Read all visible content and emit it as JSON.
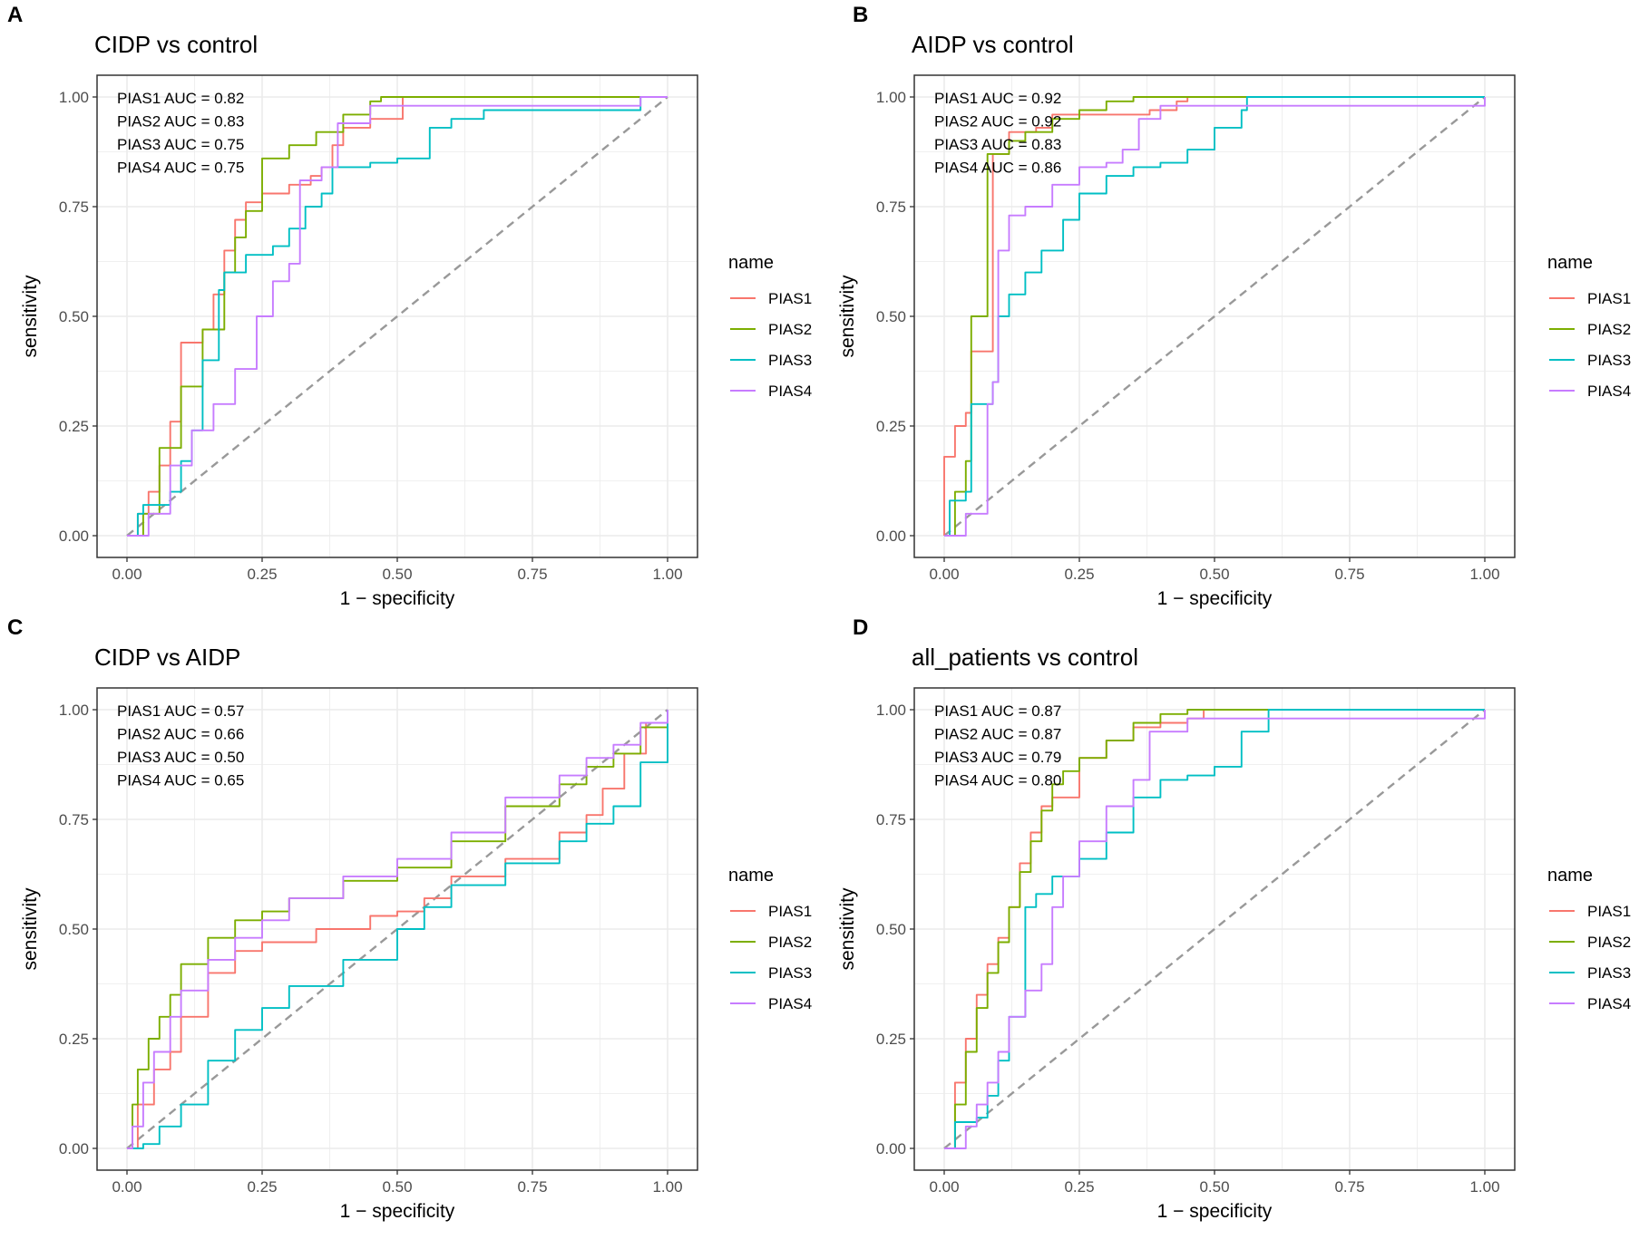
{
  "figure": {
    "series_colors": {
      "PIAS1": "#F8766D",
      "PIAS2": "#7CAE00",
      "PIAS3": "#00BFC4",
      "PIAS4": "#C77CFF"
    },
    "reference_line_color": "#999999",
    "legend_title": "name"
  },
  "chart_data": [
    {
      "panel": "A",
      "type": "line",
      "title": "CIDP vs control",
      "xlabel": "1 − specificity",
      "ylabel": "sensitivity",
      "xlim": [
        0,
        1
      ],
      "ylim": [
        0,
        1
      ],
      "xticks": [
        "0.00",
        "0.25",
        "0.50",
        "0.75",
        "1.00"
      ],
      "yticks": [
        "0.00",
        "0.25",
        "0.50",
        "0.75",
        "1.00"
      ],
      "annotations": [
        "PIAS1 AUC = 0.82",
        "PIAS2 AUC = 0.83",
        "PIAS3 AUC = 0.75",
        "PIAS4 AUC = 0.75"
      ],
      "legend": {
        "title": "name",
        "entries": [
          "PIAS1",
          "PIAS2",
          "PIAS3",
          "PIAS4"
        ]
      },
      "reference_line": [
        [
          0,
          0
        ],
        [
          1,
          1
        ]
      ],
      "series": [
        {
          "name": "PIAS1",
          "x": [
            0,
            0.02,
            0.04,
            0.06,
            0.08,
            0.1,
            0.1,
            0.14,
            0.16,
            0.18,
            0.2,
            0.22,
            0.25,
            0.3,
            0.34,
            0.36,
            0.38,
            0.4,
            0.45,
            0.51,
            0.51,
            0.65,
            1.0
          ],
          "y": [
            0,
            0.05,
            0.1,
            0.16,
            0.26,
            0.32,
            0.44,
            0.47,
            0.55,
            0.65,
            0.72,
            0.76,
            0.78,
            0.8,
            0.82,
            0.84,
            0.89,
            0.93,
            0.95,
            0.95,
            1.0,
            1.0,
            1.0
          ]
        },
        {
          "name": "PIAS2",
          "x": [
            0,
            0.03,
            0.03,
            0.06,
            0.1,
            0.14,
            0.18,
            0.2,
            0.22,
            0.25,
            0.25,
            0.3,
            0.35,
            0.4,
            0.45,
            0.47,
            0.65,
            1.0
          ],
          "y": [
            0,
            0.01,
            0.05,
            0.2,
            0.34,
            0.47,
            0.6,
            0.68,
            0.74,
            0.8,
            0.86,
            0.89,
            0.92,
            0.96,
            0.99,
            1.0,
            1.0,
            1.0
          ]
        },
        {
          "name": "PIAS3",
          "x": [
            0,
            0.02,
            0.03,
            0.06,
            0.08,
            0.1,
            0.12,
            0.14,
            0.17,
            0.18,
            0.22,
            0.27,
            0.3,
            0.33,
            0.36,
            0.38,
            0.4,
            0.45,
            0.5,
            0.56,
            0.6,
            0.66,
            0.95,
            1.0
          ],
          "y": [
            0,
            0.05,
            0.07,
            0.07,
            0.1,
            0.17,
            0.24,
            0.4,
            0.56,
            0.6,
            0.64,
            0.66,
            0.7,
            0.75,
            0.78,
            0.84,
            0.84,
            0.85,
            0.86,
            0.93,
            0.95,
            0.97,
            1.0,
            1.0
          ]
        },
        {
          "name": "PIAS4",
          "x": [
            0,
            0.04,
            0.08,
            0.12,
            0.16,
            0.2,
            0.24,
            0.27,
            0.3,
            0.32,
            0.32,
            0.36,
            0.39,
            0.39,
            0.45,
            0.6,
            0.95,
            1.0
          ],
          "y": [
            0,
            0.05,
            0.16,
            0.24,
            0.3,
            0.38,
            0.5,
            0.58,
            0.62,
            0.66,
            0.81,
            0.84,
            0.86,
            0.94,
            0.98,
            0.98,
            1.0,
            1.0
          ]
        }
      ]
    },
    {
      "panel": "B",
      "type": "line",
      "title": "AIDP vs control",
      "xlabel": "1 − specificity",
      "ylabel": "sensitivity",
      "xlim": [
        0,
        1
      ],
      "ylim": [
        0,
        1
      ],
      "xticks": [
        "0.00",
        "0.25",
        "0.50",
        "0.75",
        "1.00"
      ],
      "yticks": [
        "0.00",
        "0.25",
        "0.50",
        "0.75",
        "1.00"
      ],
      "annotations": [
        "PIAS1 AUC = 0.92",
        "PIAS2 AUC = 0.92",
        "PIAS3 AUC = 0.83",
        "PIAS4 AUC = 0.86"
      ],
      "legend": {
        "title": "name",
        "entries": [
          "PIAS1",
          "PIAS2",
          "PIAS3",
          "PIAS4"
        ]
      },
      "reference_line": [
        [
          0,
          0
        ],
        [
          1,
          1
        ]
      ],
      "series": [
        {
          "name": "PIAS1",
          "x": [
            0,
            0,
            0.02,
            0.04,
            0.05,
            0.09,
            0.09,
            0.12,
            0.17,
            0.2,
            0.2,
            0.3,
            0.33,
            0.38,
            0.43,
            0.45,
            1.0
          ],
          "y": [
            0,
            0.18,
            0.25,
            0.28,
            0.42,
            0.43,
            0.87,
            0.92,
            0.93,
            0.95,
            0.96,
            0.96,
            0.96,
            0.97,
            0.99,
            1.0,
            1.0
          ]
        },
        {
          "name": "PIAS2",
          "x": [
            0,
            0.02,
            0.04,
            0.05,
            0.08,
            0.08,
            0.09,
            0.12,
            0.15,
            0.2,
            0.25,
            0.3,
            0.35,
            0.55,
            1.0
          ],
          "y": [
            0,
            0.1,
            0.17,
            0.5,
            0.58,
            0.87,
            0.87,
            0.9,
            0.92,
            0.95,
            0.97,
            0.99,
            1.0,
            1.0,
            1.0
          ]
        },
        {
          "name": "PIAS3",
          "x": [
            0,
            0.01,
            0.04,
            0.05,
            0.09,
            0.1,
            0.12,
            0.15,
            0.18,
            0.22,
            0.25,
            0.3,
            0.35,
            0.4,
            0.45,
            0.5,
            0.55,
            0.56,
            1.0
          ],
          "y": [
            0,
            0.08,
            0.1,
            0.3,
            0.35,
            0.5,
            0.55,
            0.6,
            0.65,
            0.72,
            0.78,
            0.82,
            0.84,
            0.85,
            0.88,
            0.93,
            0.97,
            1.0,
            1.0
          ]
        },
        {
          "name": "PIAS4",
          "x": [
            0,
            0.04,
            0.08,
            0.09,
            0.1,
            0.12,
            0.15,
            0.2,
            0.25,
            0.3,
            0.33,
            0.36,
            0.4,
            0.95,
            1.0
          ],
          "y": [
            0,
            0.05,
            0.3,
            0.35,
            0.65,
            0.73,
            0.75,
            0.8,
            0.84,
            0.85,
            0.88,
            0.95,
            0.98,
            0.98,
            1.0
          ]
        }
      ]
    },
    {
      "panel": "C",
      "type": "line",
      "title": "CIDP vs AIDP",
      "xlabel": "1 − specificity",
      "ylabel": "sensitivity",
      "xlim": [
        0,
        1
      ],
      "ylim": [
        0,
        1
      ],
      "xticks": [
        "0.00",
        "0.25",
        "0.50",
        "0.75",
        "1.00"
      ],
      "yticks": [
        "0.00",
        "0.25",
        "0.50",
        "0.75",
        "1.00"
      ],
      "annotations": [
        "PIAS1 AUC = 0.57",
        "PIAS2 AUC = 0.66",
        "PIAS3 AUC = 0.50",
        "PIAS4 AUC = 0.65"
      ],
      "legend": {
        "title": "name",
        "entries": [
          "PIAS1",
          "PIAS2",
          "PIAS3",
          "PIAS4"
        ]
      },
      "reference_line": [
        [
          0,
          0
        ],
        [
          1,
          1
        ]
      ],
      "series": [
        {
          "name": "PIAS1",
          "x": [
            0,
            0.02,
            0.05,
            0.08,
            0.1,
            0.15,
            0.2,
            0.25,
            0.35,
            0.45,
            0.5,
            0.55,
            0.6,
            0.7,
            0.8,
            0.85,
            0.88,
            0.92,
            0.96,
            1.0
          ],
          "y": [
            0,
            0.1,
            0.18,
            0.22,
            0.3,
            0.4,
            0.45,
            0.47,
            0.5,
            0.53,
            0.54,
            0.57,
            0.62,
            0.66,
            0.72,
            0.76,
            0.82,
            0.9,
            0.97,
            1.0
          ]
        },
        {
          "name": "PIAS2",
          "x": [
            0,
            0.01,
            0.02,
            0.04,
            0.06,
            0.08,
            0.1,
            0.15,
            0.2,
            0.25,
            0.3,
            0.4,
            0.5,
            0.6,
            0.7,
            0.8,
            0.85,
            0.9,
            0.95,
            1.0
          ],
          "y": [
            0,
            0.1,
            0.18,
            0.25,
            0.3,
            0.35,
            0.42,
            0.48,
            0.52,
            0.54,
            0.57,
            0.61,
            0.64,
            0.7,
            0.78,
            0.83,
            0.87,
            0.9,
            0.96,
            1.0
          ]
        },
        {
          "name": "PIAS3",
          "x": [
            0,
            0.03,
            0.06,
            0.1,
            0.15,
            0.2,
            0.25,
            0.3,
            0.4,
            0.5,
            0.55,
            0.6,
            0.7,
            0.8,
            0.85,
            0.9,
            0.95,
            1.0,
            1.0
          ],
          "y": [
            0,
            0.01,
            0.05,
            0.1,
            0.2,
            0.27,
            0.32,
            0.37,
            0.43,
            0.5,
            0.55,
            0.6,
            0.65,
            0.7,
            0.74,
            0.78,
            0.88,
            0.9,
            1.0
          ]
        },
        {
          "name": "PIAS4",
          "x": [
            0,
            0.01,
            0.03,
            0.05,
            0.08,
            0.1,
            0.15,
            0.2,
            0.25,
            0.3,
            0.4,
            0.5,
            0.6,
            0.7,
            0.8,
            0.85,
            0.9,
            0.95,
            1.0
          ],
          "y": [
            0,
            0.05,
            0.15,
            0.22,
            0.3,
            0.36,
            0.43,
            0.48,
            0.52,
            0.57,
            0.62,
            0.66,
            0.72,
            0.8,
            0.85,
            0.89,
            0.92,
            0.97,
            1.0
          ]
        }
      ]
    },
    {
      "panel": "D",
      "type": "line",
      "title": "all_patients vs control",
      "xlabel": "1 − specificity",
      "ylabel": "sensitivity",
      "xlim": [
        0,
        1
      ],
      "ylim": [
        0,
        1
      ],
      "xticks": [
        "0.00",
        "0.25",
        "0.50",
        "0.75",
        "1.00"
      ],
      "yticks": [
        "0.00",
        "0.25",
        "0.50",
        "0.75",
        "1.00"
      ],
      "annotations": [
        "PIAS1 AUC = 0.87",
        "PIAS2 AUC = 0.87",
        "PIAS3 AUC = 0.79",
        "PIAS4 AUC = 0.80"
      ],
      "legend": {
        "title": "name",
        "entries": [
          "PIAS1",
          "PIAS2",
          "PIAS3",
          "PIAS4"
        ]
      },
      "reference_line": [
        [
          0,
          0
        ],
        [
          1,
          1
        ]
      ],
      "series": [
        {
          "name": "PIAS1",
          "x": [
            0,
            0.02,
            0.04,
            0.06,
            0.08,
            0.1,
            0.12,
            0.14,
            0.16,
            0.18,
            0.2,
            0.25,
            0.25,
            0.3,
            0.35,
            0.4,
            0.45,
            0.48,
            1.0
          ],
          "y": [
            0,
            0.15,
            0.25,
            0.35,
            0.42,
            0.48,
            0.55,
            0.65,
            0.72,
            0.78,
            0.8,
            0.82,
            0.89,
            0.93,
            0.96,
            0.97,
            0.98,
            1.0,
            1.0
          ]
        },
        {
          "name": "PIAS2",
          "x": [
            0,
            0.02,
            0.04,
            0.06,
            0.08,
            0.1,
            0.12,
            0.14,
            0.16,
            0.18,
            0.2,
            0.22,
            0.25,
            0.3,
            0.35,
            0.4,
            0.45,
            1.0
          ],
          "y": [
            0,
            0.1,
            0.22,
            0.32,
            0.4,
            0.47,
            0.55,
            0.63,
            0.7,
            0.77,
            0.83,
            0.86,
            0.89,
            0.93,
            0.97,
            0.99,
            1.0,
            1.0
          ]
        },
        {
          "name": "PIAS3",
          "x": [
            0,
            0.02,
            0.04,
            0.06,
            0.08,
            0.1,
            0.12,
            0.15,
            0.15,
            0.17,
            0.2,
            0.25,
            0.3,
            0.35,
            0.4,
            0.45,
            0.5,
            0.55,
            0.6,
            0.95,
            1.0
          ],
          "y": [
            0,
            0.06,
            0.06,
            0.07,
            0.12,
            0.2,
            0.3,
            0.37,
            0.55,
            0.58,
            0.62,
            0.66,
            0.72,
            0.8,
            0.84,
            0.85,
            0.87,
            0.95,
            1.0,
            1.0,
            1.0
          ]
        },
        {
          "name": "PIAS4",
          "x": [
            0,
            0.04,
            0.06,
            0.08,
            0.1,
            0.12,
            0.15,
            0.18,
            0.2,
            0.22,
            0.25,
            0.3,
            0.35,
            0.38,
            0.45,
            1.0
          ],
          "y": [
            0,
            0.05,
            0.1,
            0.15,
            0.22,
            0.3,
            0.36,
            0.42,
            0.55,
            0.62,
            0.7,
            0.78,
            0.84,
            0.95,
            0.98,
            1.0
          ]
        }
      ]
    }
  ]
}
